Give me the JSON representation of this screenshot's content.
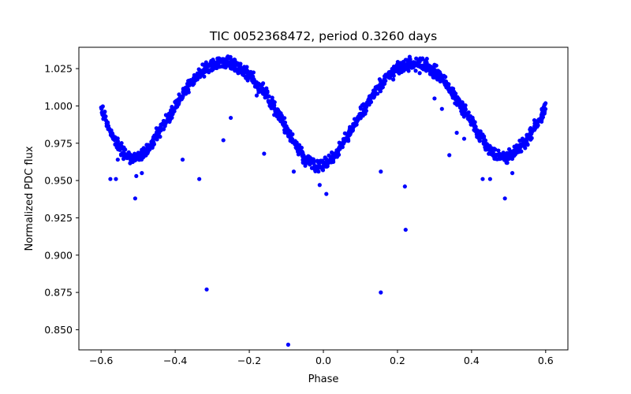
{
  "chart_data": {
    "type": "scatter",
    "title": "TIC 0052368472, period 0.3260 days",
    "xlabel": "Phase",
    "ylabel": "Normalized PDC flux",
    "xlim": [
      -0.66,
      0.66
    ],
    "ylim": [
      0.8365,
      1.0393
    ],
    "x_ticks": [
      -0.6,
      -0.4,
      -0.2,
      0.0,
      0.2,
      0.4,
      0.6
    ],
    "x_tick_labels": [
      "−0.6",
      "−0.4",
      "−0.2",
      "0.0",
      "0.2",
      "0.4",
      "0.6"
    ],
    "y_ticks": [
      0.85,
      0.875,
      0.9,
      0.925,
      0.95,
      0.975,
      1.0,
      1.025
    ],
    "y_tick_labels": [
      "0.850",
      "0.875",
      "0.900",
      "0.925",
      "0.950",
      "0.975",
      "1.000",
      "1.025"
    ],
    "grid": false,
    "legend": "none",
    "marker_color": "#0000ff",
    "series": [
      {
        "trend_points": [
          [
            -0.6,
            0.9985
          ],
          [
            -0.59,
            0.992
          ],
          [
            -0.58,
            0.986
          ],
          [
            -0.57,
            0.98
          ],
          [
            -0.56,
            0.976
          ],
          [
            -0.55,
            0.972
          ],
          [
            -0.54,
            0.969
          ],
          [
            -0.53,
            0.967
          ],
          [
            -0.52,
            0.966
          ],
          [
            -0.51,
            0.9655
          ],
          [
            -0.5,
            0.966
          ],
          [
            -0.49,
            0.967
          ],
          [
            -0.48,
            0.969
          ],
          [
            -0.47,
            0.972
          ],
          [
            -0.46,
            0.976
          ],
          [
            -0.45,
            0.98
          ],
          [
            -0.44,
            0.984
          ],
          [
            -0.43,
            0.988
          ],
          [
            -0.42,
            0.992
          ],
          [
            -0.41,
            0.996
          ],
          [
            -0.4,
            1.0
          ],
          [
            -0.39,
            1.004
          ],
          [
            -0.38,
            1.008
          ],
          [
            -0.37,
            1.011
          ],
          [
            -0.36,
            1.014
          ],
          [
            -0.35,
            1.017
          ],
          [
            -0.34,
            1.02
          ],
          [
            -0.33,
            1.022
          ],
          [
            -0.32,
            1.024
          ],
          [
            -0.31,
            1.026
          ],
          [
            -0.3,
            1.027
          ],
          [
            -0.29,
            1.028
          ],
          [
            -0.28,
            1.029
          ],
          [
            -0.27,
            1.0295
          ],
          [
            -0.26,
            1.0295
          ],
          [
            -0.25,
            1.029
          ],
          [
            -0.24,
            1.028
          ],
          [
            -0.23,
            1.027
          ],
          [
            -0.22,
            1.025
          ],
          [
            -0.21,
            1.023
          ],
          [
            -0.2,
            1.021
          ],
          [
            -0.19,
            1.018
          ],
          [
            -0.18,
            1.015
          ],
          [
            -0.17,
            1.012
          ],
          [
            -0.16,
            1.009
          ],
          [
            -0.15,
            1.006
          ],
          [
            -0.14,
            1.002
          ],
          [
            -0.13,
            0.998
          ],
          [
            -0.12,
            0.994
          ],
          [
            -0.11,
            0.989
          ],
          [
            -0.1,
            0.985
          ],
          [
            -0.09,
            0.98
          ],
          [
            -0.08,
            0.976
          ],
          [
            -0.07,
            0.972
          ],
          [
            -0.06,
            0.968
          ],
          [
            -0.05,
            0.965
          ],
          [
            -0.04,
            0.963
          ],
          [
            -0.03,
            0.9615
          ],
          [
            -0.02,
            0.961
          ],
          [
            -0.01,
            0.9608
          ],
          [
            0.0,
            0.961
          ],
          [
            0.01,
            0.962
          ],
          [
            0.02,
            0.964
          ],
          [
            0.03,
            0.967
          ],
          [
            0.04,
            0.97
          ],
          [
            0.05,
            0.974
          ],
          [
            0.06,
            0.978
          ],
          [
            0.07,
            0.982
          ],
          [
            0.08,
            0.986
          ],
          [
            0.09,
            0.99
          ],
          [
            0.1,
            0.994
          ],
          [
            0.11,
            0.998
          ],
          [
            0.12,
            1.002
          ],
          [
            0.13,
            1.006
          ],
          [
            0.14,
            1.009
          ],
          [
            0.15,
            1.012
          ],
          [
            0.16,
            1.015
          ],
          [
            0.17,
            1.018
          ],
          [
            0.18,
            1.021
          ],
          [
            0.19,
            1.023
          ],
          [
            0.2,
            1.025
          ],
          [
            0.21,
            1.026
          ],
          [
            0.22,
            1.027
          ],
          [
            0.23,
            1.028
          ],
          [
            0.24,
            1.0285
          ],
          [
            0.25,
            1.0285
          ],
          [
            0.26,
            1.0285
          ],
          [
            0.27,
            1.028
          ],
          [
            0.28,
            1.027
          ],
          [
            0.29,
            1.025
          ],
          [
            0.3,
            1.023
          ],
          [
            0.31,
            1.021
          ],
          [
            0.32,
            1.018
          ],
          [
            0.33,
            1.015
          ],
          [
            0.34,
            1.012
          ],
          [
            0.35,
            1.008
          ],
          [
            0.36,
            1.005
          ],
          [
            0.37,
            1.001
          ],
          [
            0.38,
            0.997
          ],
          [
            0.39,
            0.993
          ],
          [
            0.4,
            0.989
          ],
          [
            0.41,
            0.985
          ],
          [
            0.42,
            0.981
          ],
          [
            0.43,
            0.977
          ],
          [
            0.44,
            0.974
          ],
          [
            0.45,
            0.971
          ],
          [
            0.46,
            0.968
          ],
          [
            0.47,
            0.967
          ],
          [
            0.48,
            0.966
          ],
          [
            0.49,
            0.9655
          ],
          [
            0.5,
            0.966
          ],
          [
            0.51,
            0.967
          ],
          [
            0.52,
            0.969
          ],
          [
            0.53,
            0.972
          ],
          [
            0.54,
            0.975
          ],
          [
            0.55,
            0.978
          ],
          [
            0.56,
            0.982
          ],
          [
            0.57,
            0.986
          ],
          [
            0.58,
            0.99
          ],
          [
            0.59,
            0.994
          ],
          [
            0.6,
            0.999
          ]
        ],
        "scatter_amplitude": 0.004,
        "outliers": [
          [
            -0.575,
            0.951
          ],
          [
            -0.56,
            0.951
          ],
          [
            -0.555,
            0.964
          ],
          [
            -0.508,
            0.938
          ],
          [
            -0.505,
            0.953
          ],
          [
            -0.49,
            0.955
          ],
          [
            -0.38,
            0.964
          ],
          [
            -0.335,
            0.951
          ],
          [
            -0.315,
            0.877
          ],
          [
            -0.27,
            0.977
          ],
          [
            -0.25,
            0.992
          ],
          [
            -0.23,
            1.022
          ],
          [
            -0.18,
            1.007
          ],
          [
            -0.16,
            0.968
          ],
          [
            -0.115,
            0.993
          ],
          [
            -0.095,
            0.84
          ],
          [
            -0.08,
            0.956
          ],
          [
            -0.055,
            0.962
          ],
          [
            -0.01,
            0.947
          ],
          [
            0.008,
            0.941
          ],
          [
            0.155,
            0.956
          ],
          [
            0.155,
            0.875
          ],
          [
            0.22,
            0.946
          ],
          [
            0.222,
            0.917
          ],
          [
            0.26,
            1.022
          ],
          [
            0.3,
            1.02
          ],
          [
            0.3,
            1.005
          ],
          [
            0.32,
            0.998
          ],
          [
            0.34,
            0.967
          ],
          [
            0.36,
            0.982
          ],
          [
            0.38,
            0.978
          ],
          [
            0.43,
            0.951
          ],
          [
            0.45,
            0.951
          ],
          [
            0.49,
            0.938
          ],
          [
            0.51,
            0.955
          ]
        ]
      }
    ]
  }
}
